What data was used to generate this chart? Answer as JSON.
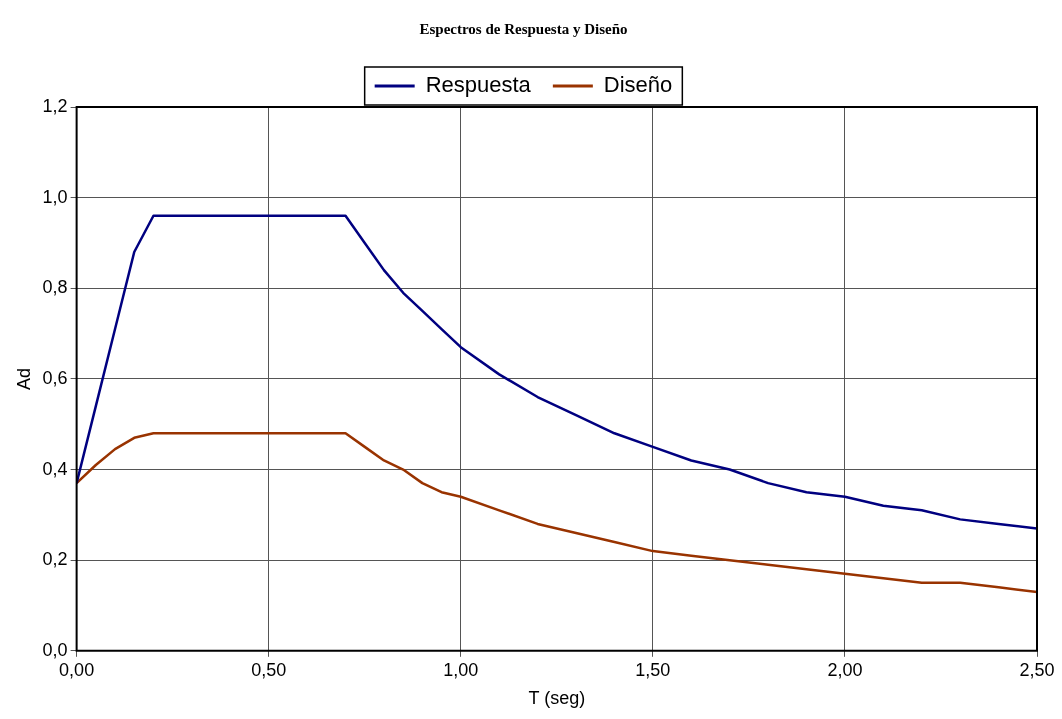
{
  "chart_data": {
    "type": "line",
    "title": "Espectros de Respuesta y Diseño",
    "xlabel": "T (seg)",
    "ylabel": "Ad",
    "x": [
      0,
      0.05,
      0.1,
      0.15,
      0.2,
      0.7,
      0.75,
      0.8,
      0.85,
      0.9,
      0.95,
      1.0,
      1.1,
      1.2,
      1.3,
      1.4,
      1.5,
      1.6,
      1.7,
      1.8,
      1.9,
      2.0,
      2.1,
      2.2,
      2.3,
      2.4,
      2.5
    ],
    "series": [
      {
        "name": "Respuesta",
        "color": "#000080",
        "values": [
          0.37,
          0.54,
          0.71,
          0.88,
          0.96,
          0.96,
          0.9,
          0.84,
          0.79,
          0.75,
          0.71,
          0.67,
          0.61,
          0.56,
          0.52,
          0.48,
          0.45,
          0.42,
          0.4,
          0.37,
          0.35,
          0.34,
          0.32,
          0.31,
          0.29,
          0.28,
          0.27
        ]
      },
      {
        "name": "Diseño",
        "color": "#993300",
        "values": [
          0.37,
          0.41,
          0.445,
          0.47,
          0.48,
          0.48,
          0.45,
          0.42,
          0.4,
          0.37,
          0.35,
          0.34,
          0.31,
          0.28,
          0.26,
          0.24,
          0.22,
          0.21,
          0.2,
          0.19,
          0.18,
          0.17,
          0.16,
          0.15,
          0.15,
          0.14,
          0.13
        ]
      }
    ],
    "xlim": [
      0,
      2.5
    ],
    "xticks": [
      {
        "value": 0,
        "label": "0,00"
      },
      {
        "value": 0.5,
        "label": "0,50"
      },
      {
        "value": 1,
        "label": "1,00"
      },
      {
        "value": 1.5,
        "label": "1,50"
      },
      {
        "value": 2,
        "label": "2,00"
      },
      {
        "value": 2.5,
        "label": "2,50"
      }
    ],
    "ylim": [
      0,
      1.2
    ],
    "yticks": [
      {
        "value": 0,
        "label": "0,0"
      },
      {
        "value": 0.2,
        "label": "0,2"
      },
      {
        "value": 0.4,
        "label": "0,4"
      },
      {
        "value": 0.6,
        "label": "0,6"
      },
      {
        "value": 0.8,
        "label": "0,8"
      },
      {
        "value": 1,
        "label": "1,0"
      },
      {
        "value": 1.2,
        "label": "1,2"
      }
    ],
    "grid": true,
    "legend": "top",
    "marker": "none",
    "line_style": "solid"
  }
}
